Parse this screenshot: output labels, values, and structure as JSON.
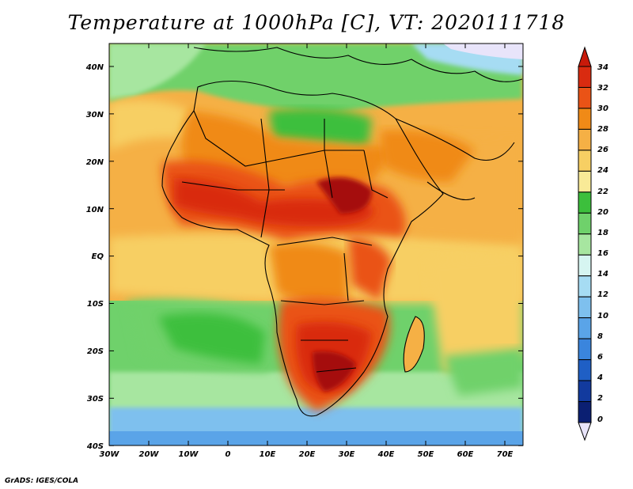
{
  "title": "Temperature at 1000hPa [C], VT: 2020111718",
  "credit": "GrADS: IGES/COLA",
  "lon_labels": [
    "30W",
    "20W",
    "10W",
    "0",
    "10E",
    "20E",
    "30E",
    "40E",
    "50E",
    "60E",
    "70E"
  ],
  "lat_labels": [
    "40N",
    "30N",
    "20N",
    "10N",
    "EQ",
    "10S",
    "20S",
    "30S",
    "40S"
  ],
  "colorbar": {
    "labels": [
      "34",
      "32",
      "30",
      "28",
      "26",
      "24",
      "22",
      "20",
      "18",
      "16",
      "14",
      "12",
      "10",
      "8",
      "6",
      "4",
      "2",
      "0"
    ],
    "colors": [
      "#a50a0a",
      "#d92b10",
      "#ea5316",
      "#f08a17",
      "#f5b045",
      "#f7cf63",
      "#f9ea97",
      "#3cbf3c",
      "#6fd16b",
      "#a7e6a0",
      "#d6f5f1",
      "#a6dcf3",
      "#7ec0ee",
      "#5aa4e8",
      "#3a85dd",
      "#1f5fc5",
      "#123a9e",
      "#0b1f72"
    ],
    "top_arrow_color": "#c81a0a",
    "bottom_arrow_color": "#e8e4fa"
  }
}
